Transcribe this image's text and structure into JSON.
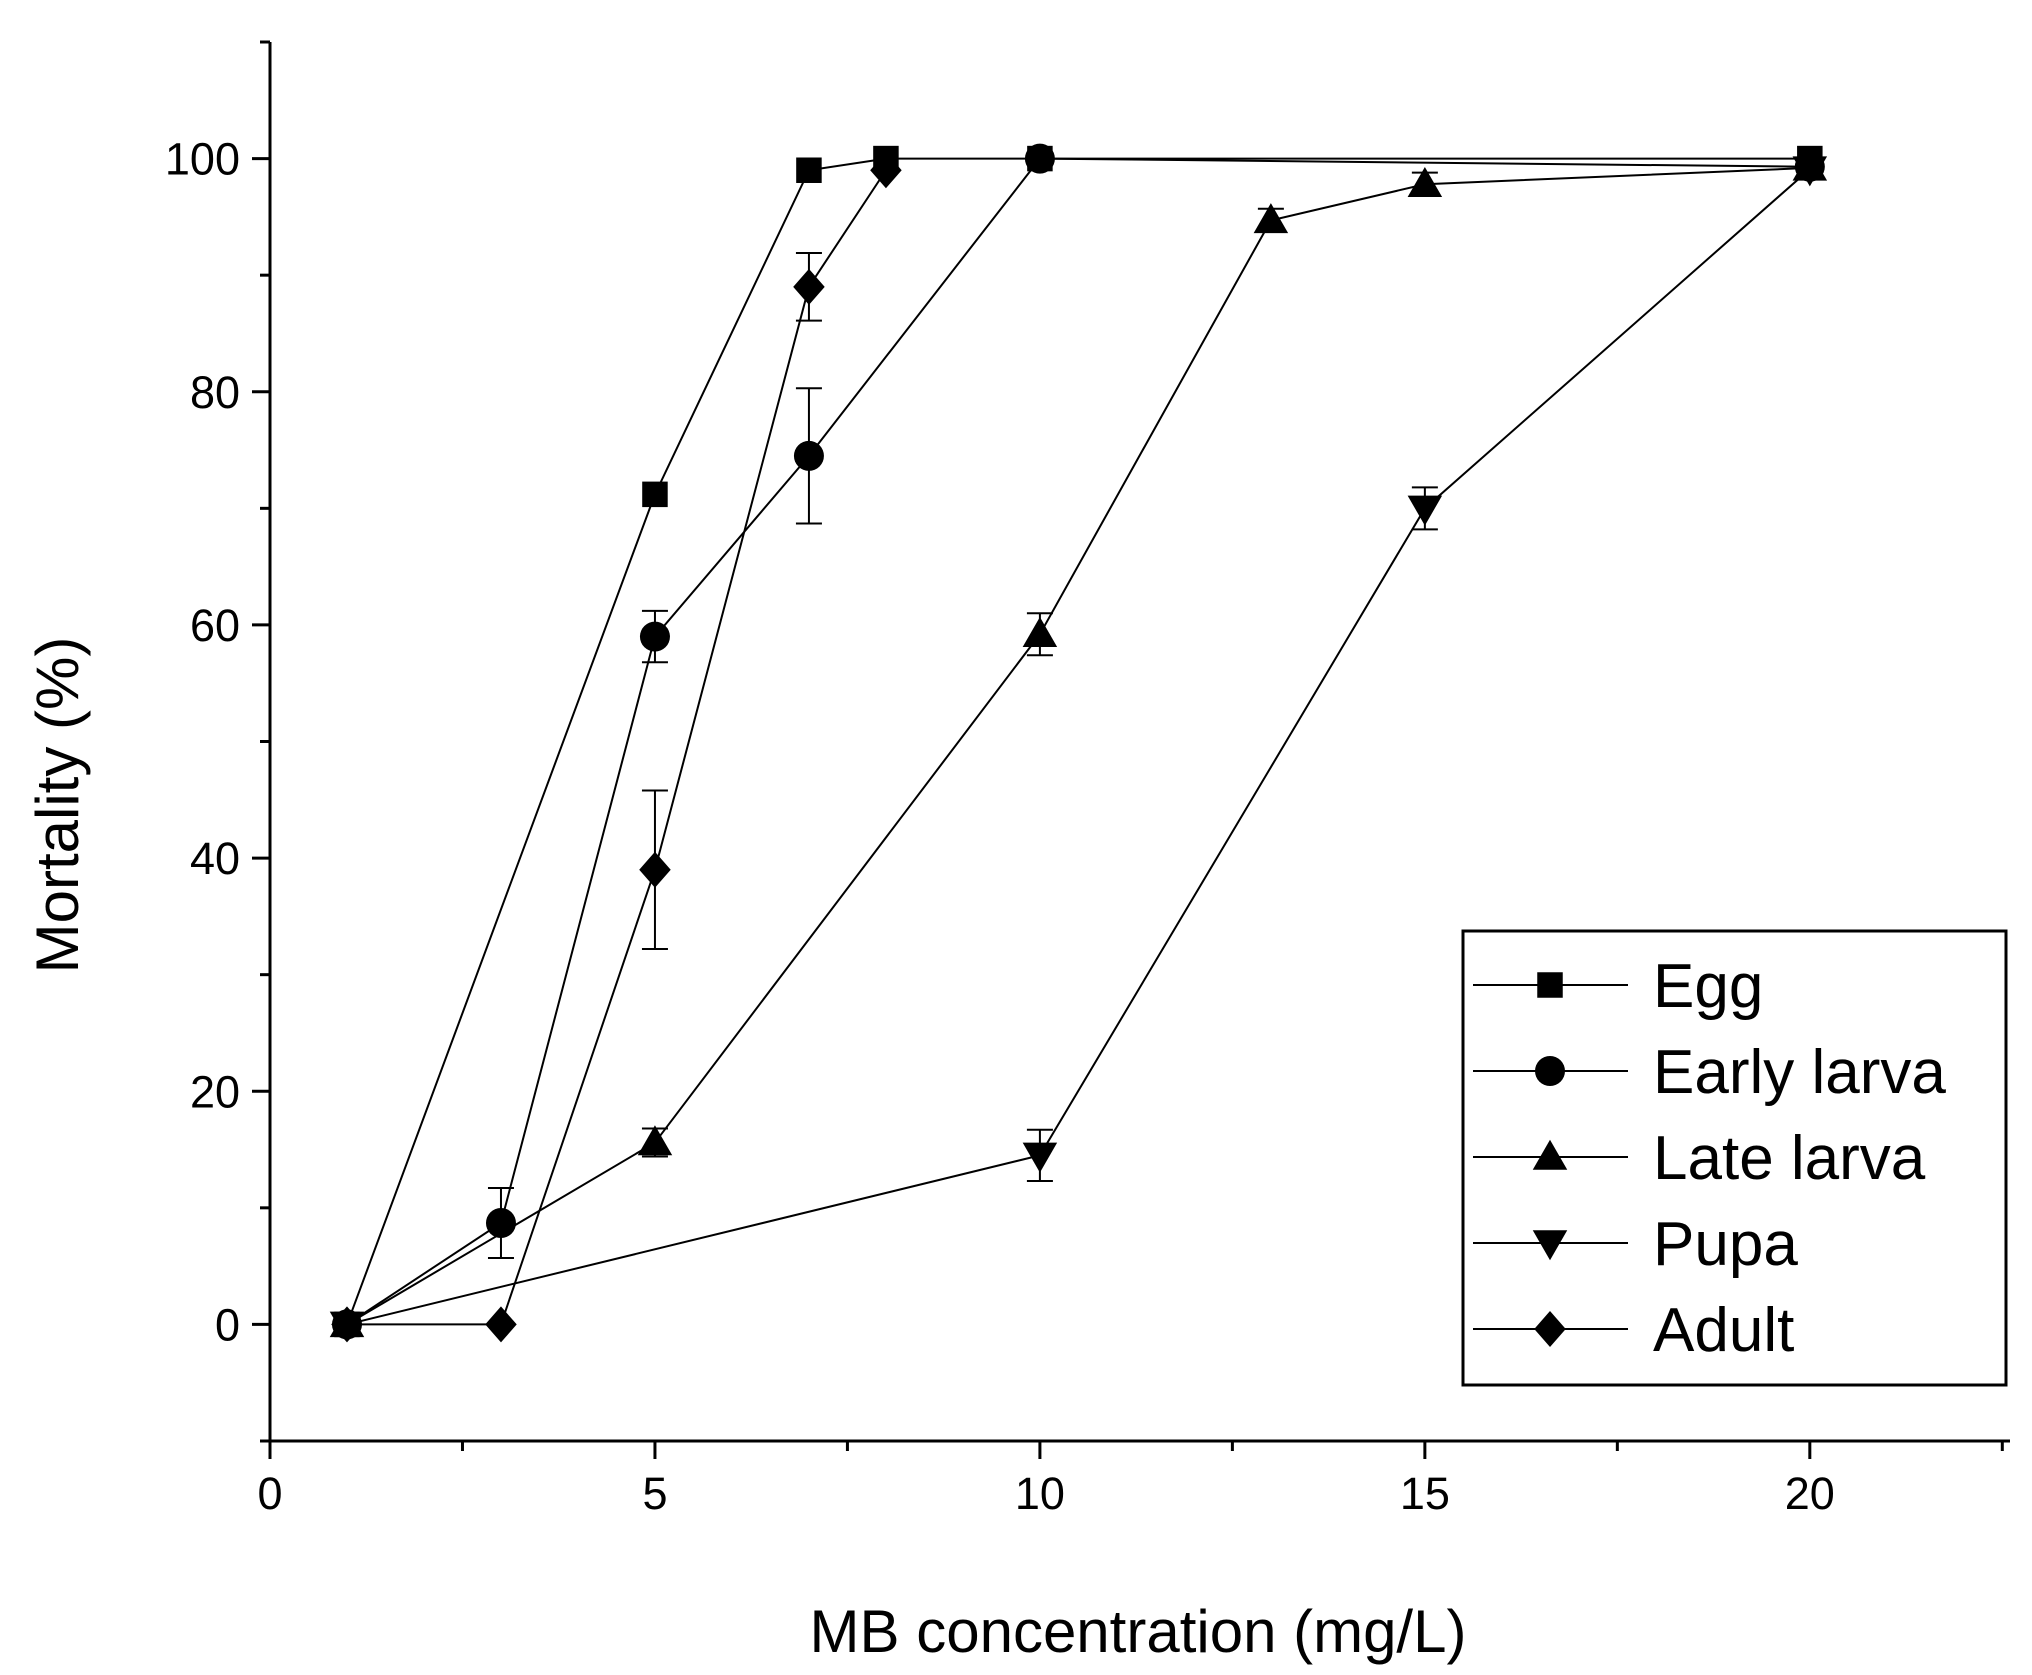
{
  "chart_data": {
    "type": "line",
    "xlabel": "MB concentration (mg/L)",
    "ylabel": "Mortality (%)",
    "xlim": [
      0,
      22.6
    ],
    "ylim": [
      -10,
      110
    ],
    "xticks": [
      0,
      5,
      10,
      15,
      20
    ],
    "yticks": [
      0,
      20,
      40,
      60,
      80,
      100
    ],
    "legend_position": "bottom-right",
    "series": [
      {
        "name": "Egg",
        "marker": "square",
        "points": [
          {
            "x": 1,
            "y": 0
          },
          {
            "x": 5,
            "y": 71.2
          },
          {
            "x": 7,
            "y": 99
          },
          {
            "x": 8,
            "y": 100
          },
          {
            "x": 10,
            "y": 100
          },
          {
            "x": 20,
            "y": 100
          }
        ]
      },
      {
        "name": "Early larva",
        "marker": "circle",
        "points": [
          {
            "x": 1,
            "y": 0
          },
          {
            "x": 3,
            "y": 8.7,
            "err": 3
          },
          {
            "x": 5,
            "y": 59,
            "err": 2.2
          },
          {
            "x": 7,
            "y": 74.5,
            "err": 5.8
          },
          {
            "x": 10,
            "y": 100
          },
          {
            "x": 20,
            "y": 99.3
          }
        ]
      },
      {
        "name": "Late larva",
        "marker": "triangle-up",
        "points": [
          {
            "x": 1,
            "y": 0
          },
          {
            "x": 5,
            "y": 15.6,
            "err": 1.2
          },
          {
            "x": 10,
            "y": 59.2,
            "err": 1.8
          },
          {
            "x": 13,
            "y": 94.7,
            "err": 1
          },
          {
            "x": 15,
            "y": 97.8,
            "err": 1
          },
          {
            "x": 20,
            "y": 99.2
          }
        ]
      },
      {
        "name": "Pupa",
        "marker": "triangle-down",
        "points": [
          {
            "x": 1,
            "y": 0
          },
          {
            "x": 10,
            "y": 14.5,
            "err": 2.2
          },
          {
            "x": 15,
            "y": 70,
            "err": 1.8
          },
          {
            "x": 20,
            "y": 99.1
          }
        ]
      },
      {
        "name": "Adult",
        "marker": "diamond",
        "points": [
          {
            "x": 1,
            "y": 0
          },
          {
            "x": 3,
            "y": 0
          },
          {
            "x": 5,
            "y": 39,
            "err": 6.8
          },
          {
            "x": 7,
            "y": 89,
            "err": 2.9
          },
          {
            "x": 8,
            "y": 99
          }
        ]
      }
    ]
  }
}
